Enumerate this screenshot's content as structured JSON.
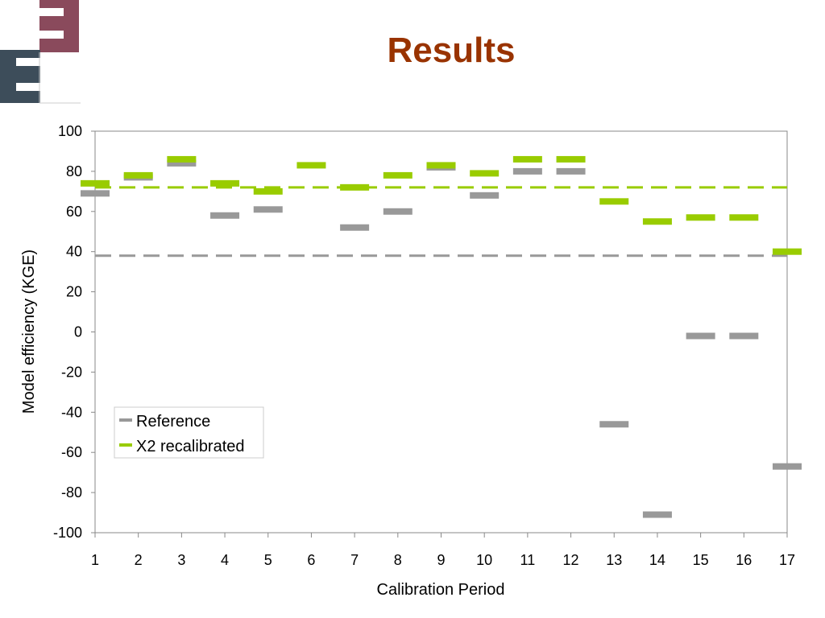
{
  "slide": {
    "title": "Results"
  },
  "colors": {
    "title": "#993300",
    "logo_dark": "#3d4d5a",
    "logo_red": "#8a4a5c",
    "reference": "#999999",
    "recalibrated": "#99cc00"
  },
  "chart_data": {
    "type": "scatter",
    "title": "",
    "xlabel": "Calibration Period",
    "ylabel": "Model efficiency (KGE)",
    "categories": [
      "1",
      "2",
      "3",
      "4",
      "5",
      "6",
      "7",
      "8",
      "9",
      "10",
      "11",
      "12",
      "13",
      "14",
      "15",
      "16",
      "17"
    ],
    "ylim": [
      -100,
      100
    ],
    "yticks": [
      100,
      80,
      60,
      40,
      20,
      0,
      -20,
      -40,
      -60,
      -80,
      -100
    ],
    "grid": false,
    "legend_position": "lower-left",
    "series": [
      {
        "name": "Reference",
        "color": "#999999",
        "values": [
          69,
          77,
          84,
          58,
          61,
          null,
          52,
          60,
          82,
          68,
          80,
          80,
          -46,
          -91,
          -2,
          -2,
          -67
        ],
        "reference_line": 38
      },
      {
        "name": "X2 recalibrated",
        "color": "#99cc00",
        "values": [
          74,
          78,
          86,
          74,
          70,
          83,
          72,
          78,
          83,
          79,
          86,
          86,
          65,
          55,
          57,
          57,
          40
        ],
        "reference_line": 72
      }
    ]
  }
}
